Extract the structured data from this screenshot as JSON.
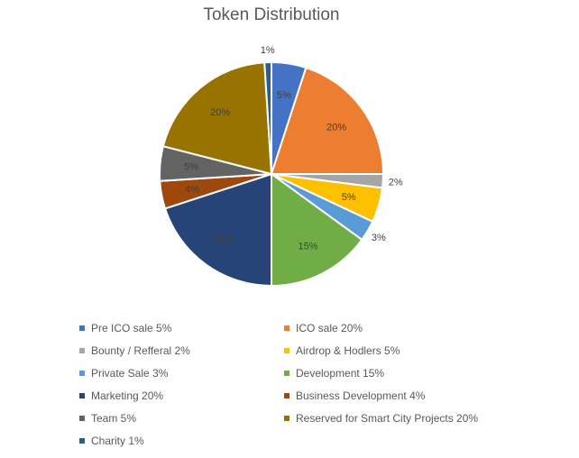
{
  "chart_data": {
    "type": "pie",
    "title": "Token Distribution",
    "slices": [
      {
        "name": "Pre ICO sale",
        "value": 5,
        "label": "5%",
        "legend": "Pre ICO sale 5%",
        "color": "#4472C4"
      },
      {
        "name": "ICO sale",
        "value": 20,
        "label": "20%",
        "legend": "ICO sale 20%",
        "color": "#ED7D31"
      },
      {
        "name": "Bounty / Refferal",
        "value": 2,
        "label": "2%",
        "legend": "Bounty / Refferal 2%",
        "color": "#A5A5A5"
      },
      {
        "name": "Airdrop & Hodlers",
        "value": 5,
        "label": "5%",
        "legend": "Airdrop & Hodlers 5%",
        "color": "#FFC000"
      },
      {
        "name": "Private Sale",
        "value": 3,
        "label": "3%",
        "legend": "Private Sale 3%",
        "color": "#5B9BD5"
      },
      {
        "name": "Development",
        "value": 15,
        "label": "15%",
        "legend": "Development 15%",
        "color": "#70AD47"
      },
      {
        "name": "Marketing",
        "value": 20,
        "label": "20%",
        "legend": "Marketing 20%",
        "color": "#264478"
      },
      {
        "name": "Business Development",
        "value": 4,
        "label": "4%",
        "legend": "Business Development 4%",
        "color": "#9E480E"
      },
      {
        "name": "Team",
        "value": 5,
        "label": "5%",
        "legend": "Team 5%",
        "color": "#636363"
      },
      {
        "name": "Reserved for Smart City Projects",
        "value": 20,
        "label": "20%",
        "legend": "Reserved for Smart City Projects 20%",
        "color": "#997300"
      },
      {
        "name": "Charity",
        "value": 1,
        "label": "1%",
        "legend": "Charity 1%",
        "color": "#255E91"
      }
    ],
    "legend_position": "bottom"
  }
}
